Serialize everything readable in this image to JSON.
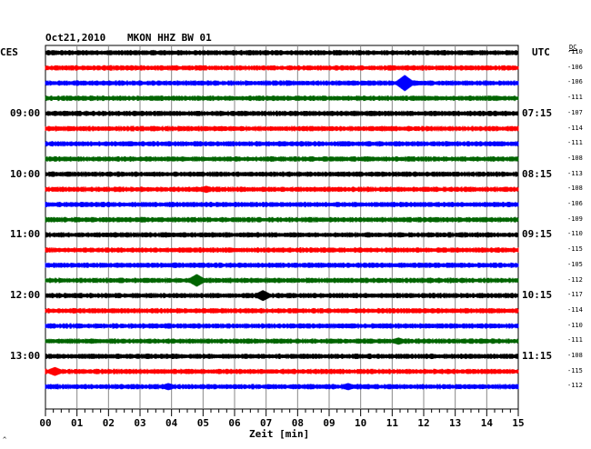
{
  "header": {
    "date": "Oct21,2010",
    "station": "MKON HHZ BW 01",
    "left_tz": "CES",
    "right_tz": "UTC",
    "dc_label": "DC"
  },
  "chart_data": {
    "type": "line",
    "title": "Oct21,2010   MKON HHZ BW 01",
    "xlabel": "Zeit [min]",
    "x_range": [
      0,
      15
    ],
    "x_ticks": [
      "00",
      "01",
      "02",
      "03",
      "04",
      "05",
      "06",
      "07",
      "08",
      "09",
      "10",
      "11",
      "12",
      "13",
      "14",
      "15"
    ],
    "left_time_labels": [
      {
        "row": 4,
        "text": "09:00"
      },
      {
        "row": 8,
        "text": "10:00"
      },
      {
        "row": 12,
        "text": "11:00"
      },
      {
        "row": 16,
        "text": "12:00"
      },
      {
        "row": 20,
        "text": "13:00"
      }
    ],
    "right_time_labels": [
      {
        "row": 4,
        "text": "07:15"
      },
      {
        "row": 8,
        "text": "08:15"
      },
      {
        "row": 12,
        "text": "09:15"
      },
      {
        "row": 16,
        "text": "10:15"
      },
      {
        "row": 20,
        "text": "11:15"
      }
    ],
    "trace_colors": [
      "#000000",
      "#ff0000",
      "#0000ff",
      "#006400"
    ],
    "dc_offsets": [
      -110,
      -106,
      -106,
      -111,
      -107,
      -114,
      -111,
      -108,
      -113,
      -108,
      -106,
      -109,
      -110,
      -115,
      -105,
      -112,
      -117,
      -114,
      -110,
      -111,
      -108,
      -115,
      -112
    ],
    "events": [
      {
        "row": 2,
        "minute": 11.4,
        "amplitude": 9
      },
      {
        "row": 9,
        "minute": 5.1,
        "amplitude": 4
      },
      {
        "row": 15,
        "minute": 4.8,
        "amplitude": 7
      },
      {
        "row": 16,
        "minute": 6.9,
        "amplitude": 6
      },
      {
        "row": 19,
        "minute": 11.2,
        "amplitude": 4
      },
      {
        "row": 21,
        "minute": 0.3,
        "amplitude": 5
      },
      {
        "row": 22,
        "minute": 3.9,
        "amplitude": 4
      },
      {
        "row": 22,
        "minute": 9.6,
        "amplitude": 4
      }
    ],
    "grid": true
  },
  "footer": {
    "corner_mark": "^"
  }
}
